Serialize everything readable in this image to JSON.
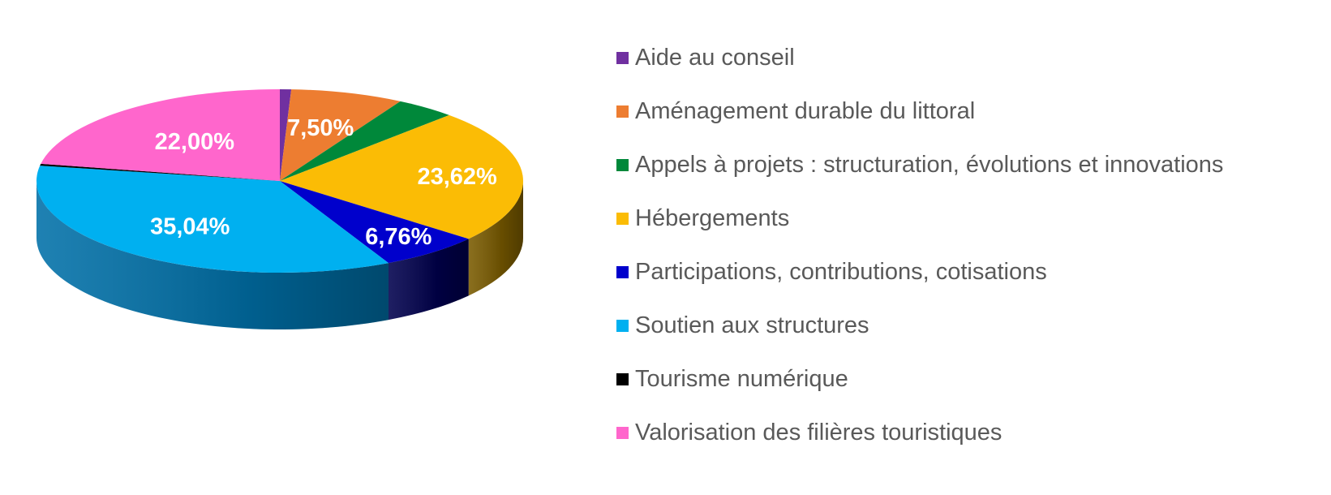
{
  "chart_data": {
    "type": "pie",
    "style": "3d",
    "legend_position": "right",
    "categories": [
      "Aide au conseil",
      "Aménagement durable du littoral",
      "Appels à projets : structuration, évolutions et innovations",
      "Hébergements",
      "Participations, contributions, cotisations",
      "Soutien aux structures",
      "Tourisme numérique",
      "Valorisation des filières touristiques"
    ],
    "values": [
      0.75,
      7.5,
      4.0,
      23.62,
      6.76,
      35.04,
      0.33,
      22.0
    ],
    "data_labels": [
      "",
      "7,50%",
      "",
      "23,62%",
      "6,76%",
      "35,04%",
      "",
      "22,00%"
    ],
    "colors": [
      "#7030a0",
      "#ed7d31",
      "#00883a",
      "#fbbc05",
      "#0000cc",
      "#00b0f0",
      "#000000",
      "#ff66cc"
    ],
    "side_colors": [
      "#3e1a5c",
      "#8a4416",
      "#004d1f",
      "#7a5b00",
      "#00004d",
      "#0070a8",
      "#000000",
      "#a8336e"
    ]
  }
}
